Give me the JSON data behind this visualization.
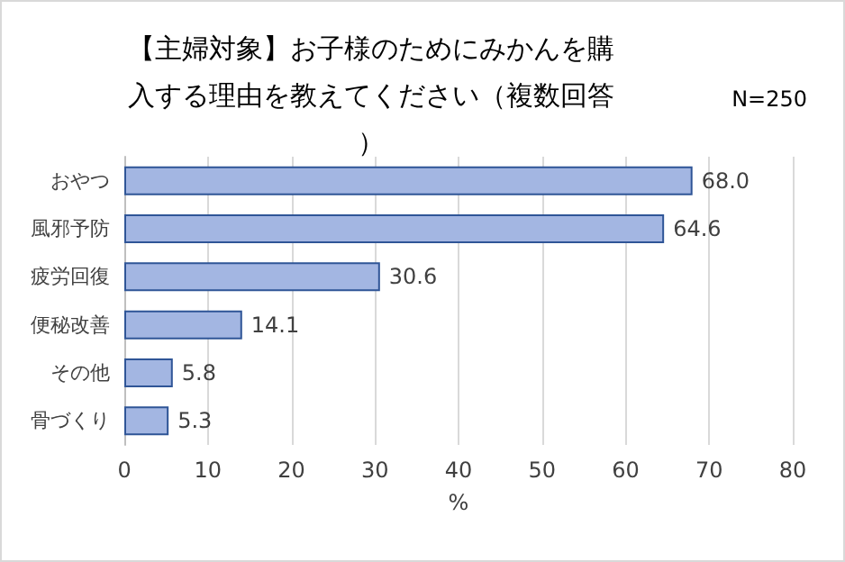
{
  "chart_data": {
    "type": "bar",
    "orientation": "horizontal",
    "title": "【主婦対象】お子様のためにみかんを購入する理由を教えてください（複数回答）",
    "annotations": [
      "N=250"
    ],
    "xlabel": "%",
    "categories": [
      "おやつ",
      "風邪予防",
      "疲労回復",
      "便秘改善",
      "その他",
      "骨づくり"
    ],
    "values": [
      68.0,
      64.6,
      30.6,
      14.1,
      5.8,
      5.3
    ],
    "value_labels": [
      "68.0",
      "64.6",
      "30.6",
      "14.1",
      "5.8",
      "5.3"
    ],
    "color": "#a3b6e2",
    "xlim": [
      0,
      80
    ],
    "xticks": [
      0,
      10,
      20,
      30,
      40,
      50,
      60,
      70,
      80
    ],
    "grid": "x"
  }
}
